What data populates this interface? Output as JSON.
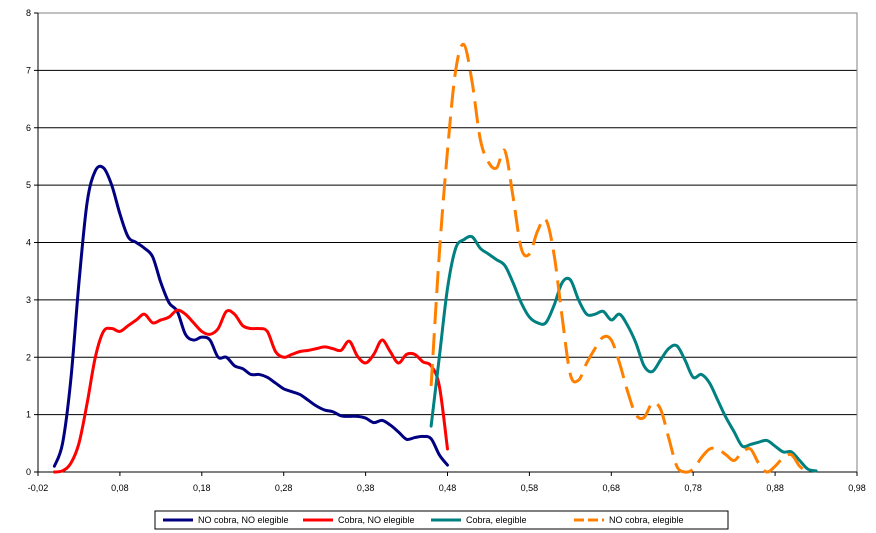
{
  "chart_data": {
    "type": "line",
    "title": "",
    "xlabel": "",
    "ylabel": "",
    "xlim": [
      -0.02,
      0.98
    ],
    "ylim": [
      0,
      8
    ],
    "x_ticks": [
      -0.02,
      0.08,
      0.18,
      0.28,
      0.38,
      0.48,
      0.58,
      0.68,
      0.78,
      0.88,
      0.98
    ],
    "x_tick_labels": [
      "-0,02",
      "0,08",
      "0,18",
      "0,28",
      "0,38",
      "0,48",
      "0,58",
      "0,68",
      "0,78",
      "0,88",
      "0,98"
    ],
    "y_ticks": [
      0,
      1,
      2,
      3,
      4,
      5,
      6,
      7,
      8
    ],
    "y_tick_labels": [
      "0",
      "1",
      "2",
      "3",
      "4",
      "5",
      "6",
      "7",
      "8"
    ],
    "grid": "horizontal",
    "legend_position": "bottom",
    "series": [
      {
        "name": "NO cobra, NO elegible",
        "color": "#000080",
        "dash": false,
        "points": [
          [
            0.0,
            0.1
          ],
          [
            0.01,
            0.5
          ],
          [
            0.02,
            1.6
          ],
          [
            0.03,
            3.3
          ],
          [
            0.04,
            4.7
          ],
          [
            0.05,
            5.25
          ],
          [
            0.06,
            5.3
          ],
          [
            0.07,
            5.0
          ],
          [
            0.08,
            4.5
          ],
          [
            0.09,
            4.1
          ],
          [
            0.1,
            4.0
          ],
          [
            0.11,
            3.9
          ],
          [
            0.12,
            3.75
          ],
          [
            0.13,
            3.3
          ],
          [
            0.14,
            2.95
          ],
          [
            0.15,
            2.8
          ],
          [
            0.16,
            2.4
          ],
          [
            0.17,
            2.3
          ],
          [
            0.18,
            2.35
          ],
          [
            0.19,
            2.3
          ],
          [
            0.2,
            2.0
          ],
          [
            0.21,
            2.0
          ],
          [
            0.22,
            1.85
          ],
          [
            0.23,
            1.8
          ],
          [
            0.24,
            1.7
          ],
          [
            0.25,
            1.7
          ],
          [
            0.26,
            1.65
          ],
          [
            0.27,
            1.55
          ],
          [
            0.28,
            1.45
          ],
          [
            0.29,
            1.4
          ],
          [
            0.3,
            1.35
          ],
          [
            0.31,
            1.25
          ],
          [
            0.32,
            1.15
          ],
          [
            0.33,
            1.08
          ],
          [
            0.34,
            1.05
          ],
          [
            0.35,
            0.98
          ],
          [
            0.36,
            0.97
          ],
          [
            0.37,
            0.97
          ],
          [
            0.38,
            0.94
          ],
          [
            0.39,
            0.86
          ],
          [
            0.4,
            0.9
          ],
          [
            0.41,
            0.82
          ],
          [
            0.42,
            0.7
          ],
          [
            0.43,
            0.57
          ],
          [
            0.44,
            0.6
          ],
          [
            0.45,
            0.62
          ],
          [
            0.46,
            0.58
          ],
          [
            0.47,
            0.3
          ],
          [
            0.48,
            0.12
          ]
        ]
      },
      {
        "name": "Cobra, NO elegible",
        "color": "#ff0000",
        "dash": false,
        "points": [
          [
            0.0,
            0.0
          ],
          [
            0.01,
            0.02
          ],
          [
            0.02,
            0.15
          ],
          [
            0.03,
            0.5
          ],
          [
            0.04,
            1.2
          ],
          [
            0.05,
            2.0
          ],
          [
            0.06,
            2.45
          ],
          [
            0.07,
            2.5
          ],
          [
            0.08,
            2.45
          ],
          [
            0.09,
            2.55
          ],
          [
            0.1,
            2.65
          ],
          [
            0.11,
            2.75
          ],
          [
            0.12,
            2.6
          ],
          [
            0.13,
            2.65
          ],
          [
            0.14,
            2.7
          ],
          [
            0.15,
            2.82
          ],
          [
            0.16,
            2.75
          ],
          [
            0.17,
            2.6
          ],
          [
            0.18,
            2.45
          ],
          [
            0.19,
            2.4
          ],
          [
            0.2,
            2.5
          ],
          [
            0.21,
            2.8
          ],
          [
            0.22,
            2.75
          ],
          [
            0.23,
            2.55
          ],
          [
            0.24,
            2.5
          ],
          [
            0.25,
            2.5
          ],
          [
            0.26,
            2.45
          ],
          [
            0.27,
            2.1
          ],
          [
            0.28,
            2.0
          ],
          [
            0.29,
            2.05
          ],
          [
            0.3,
            2.1
          ],
          [
            0.31,
            2.12
          ],
          [
            0.32,
            2.15
          ],
          [
            0.33,
            2.18
          ],
          [
            0.34,
            2.15
          ],
          [
            0.35,
            2.12
          ],
          [
            0.36,
            2.28
          ],
          [
            0.37,
            2.02
          ],
          [
            0.38,
            1.9
          ],
          [
            0.39,
            2.05
          ],
          [
            0.4,
            2.3
          ],
          [
            0.41,
            2.1
          ],
          [
            0.42,
            1.9
          ],
          [
            0.43,
            2.05
          ],
          [
            0.44,
            2.05
          ],
          [
            0.45,
            1.92
          ],
          [
            0.46,
            1.85
          ],
          [
            0.47,
            1.5
          ],
          [
            0.48,
            0.4
          ]
        ]
      },
      {
        "name": "Cobra, elegible",
        "color": "#008080",
        "dash": false,
        "points": [
          [
            0.46,
            0.8
          ],
          [
            0.47,
            2.0
          ],
          [
            0.48,
            3.2
          ],
          [
            0.49,
            3.9
          ],
          [
            0.5,
            4.05
          ],
          [
            0.51,
            4.1
          ],
          [
            0.52,
            3.9
          ],
          [
            0.53,
            3.8
          ],
          [
            0.54,
            3.7
          ],
          [
            0.55,
            3.6
          ],
          [
            0.56,
            3.3
          ],
          [
            0.57,
            2.95
          ],
          [
            0.58,
            2.7
          ],
          [
            0.59,
            2.6
          ],
          [
            0.6,
            2.6
          ],
          [
            0.61,
            2.9
          ],
          [
            0.62,
            3.3
          ],
          [
            0.63,
            3.35
          ],
          [
            0.64,
            3.0
          ],
          [
            0.65,
            2.75
          ],
          [
            0.66,
            2.75
          ],
          [
            0.67,
            2.8
          ],
          [
            0.68,
            2.65
          ],
          [
            0.69,
            2.75
          ],
          [
            0.7,
            2.55
          ],
          [
            0.71,
            2.25
          ],
          [
            0.72,
            1.85
          ],
          [
            0.73,
            1.75
          ],
          [
            0.74,
            1.95
          ],
          [
            0.75,
            2.15
          ],
          [
            0.76,
            2.2
          ],
          [
            0.77,
            1.95
          ],
          [
            0.78,
            1.65
          ],
          [
            0.79,
            1.7
          ],
          [
            0.8,
            1.55
          ],
          [
            0.81,
            1.25
          ],
          [
            0.82,
            0.95
          ],
          [
            0.83,
            0.7
          ],
          [
            0.84,
            0.45
          ],
          [
            0.85,
            0.48
          ],
          [
            0.86,
            0.52
          ],
          [
            0.87,
            0.55
          ],
          [
            0.88,
            0.45
          ],
          [
            0.89,
            0.35
          ],
          [
            0.9,
            0.35
          ],
          [
            0.91,
            0.2
          ],
          [
            0.92,
            0.05
          ],
          [
            0.93,
            0.02
          ]
        ]
      },
      {
        "name": "NO cobra, elegible",
        "color": "#ff8000",
        "dash": true,
        "points": [
          [
            0.46,
            1.5
          ],
          [
            0.47,
            3.8
          ],
          [
            0.48,
            5.6
          ],
          [
            0.49,
            7.0
          ],
          [
            0.5,
            7.45
          ],
          [
            0.51,
            6.8
          ],
          [
            0.52,
            5.8
          ],
          [
            0.53,
            5.4
          ],
          [
            0.54,
            5.3
          ],
          [
            0.55,
            5.6
          ],
          [
            0.56,
            4.8
          ],
          [
            0.57,
            3.9
          ],
          [
            0.58,
            3.8
          ],
          [
            0.59,
            4.2
          ],
          [
            0.6,
            4.4
          ],
          [
            0.61,
            3.8
          ],
          [
            0.62,
            2.7
          ],
          [
            0.63,
            1.7
          ],
          [
            0.64,
            1.6
          ],
          [
            0.65,
            1.9
          ],
          [
            0.66,
            2.15
          ],
          [
            0.67,
            2.35
          ],
          [
            0.68,
            2.3
          ],
          [
            0.69,
            1.9
          ],
          [
            0.7,
            1.4
          ],
          [
            0.71,
            1.0
          ],
          [
            0.72,
            0.95
          ],
          [
            0.73,
            1.2
          ],
          [
            0.74,
            1.1
          ],
          [
            0.75,
            0.6
          ],
          [
            0.76,
            0.1
          ],
          [
            0.77,
            0.0
          ],
          [
            0.78,
            0.05
          ],
          [
            0.79,
            0.25
          ],
          [
            0.8,
            0.4
          ],
          [
            0.81,
            0.4
          ],
          [
            0.82,
            0.3
          ],
          [
            0.83,
            0.2
          ],
          [
            0.84,
            0.35
          ],
          [
            0.85,
            0.4
          ],
          [
            0.86,
            0.15
          ],
          [
            0.87,
            0.0
          ],
          [
            0.88,
            0.1
          ],
          [
            0.89,
            0.25
          ],
          [
            0.9,
            0.3
          ],
          [
            0.91,
            0.1
          ],
          [
            0.92,
            0.0
          ]
        ]
      }
    ]
  }
}
